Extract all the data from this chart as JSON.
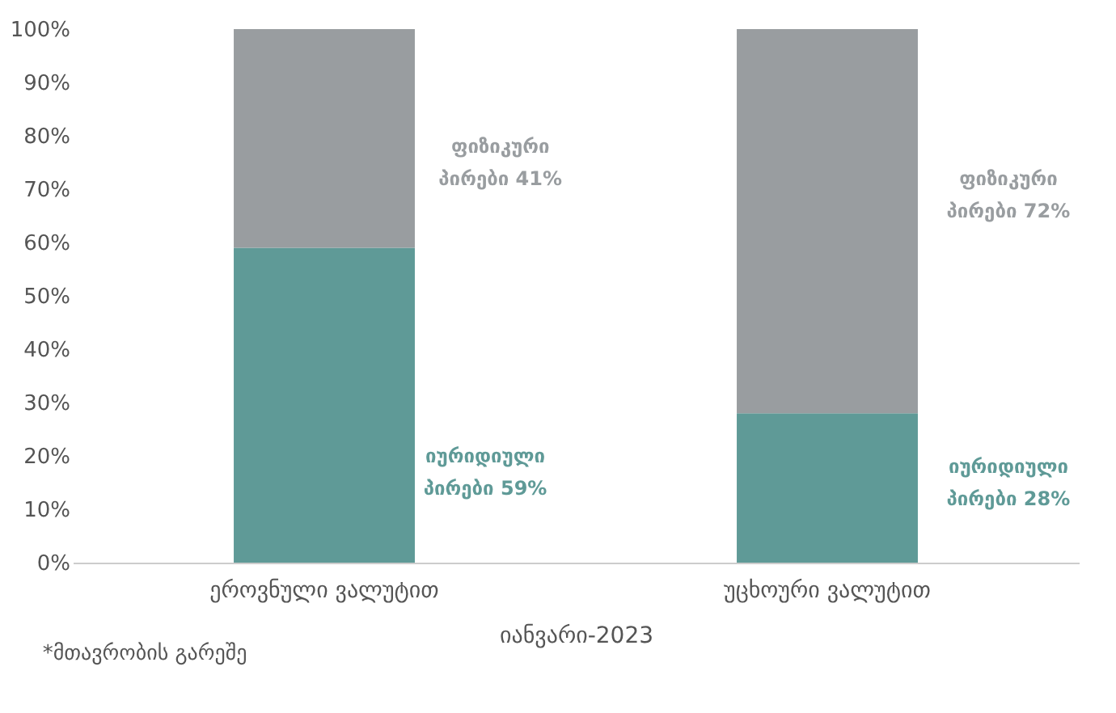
{
  "chart_data": {
    "type": "bar",
    "stacked": true,
    "xlabel": "იანვარი-2023",
    "categories": [
      "ეროვნული ვალუტით",
      "უცხოური ვალუტით"
    ],
    "series": [
      {
        "color": "#5f9a97",
        "values": [
          59,
          28
        ]
      },
      {
        "color": "#999da0",
        "values": [
          41,
          72
        ]
      }
    ],
    "ylim": [
      0,
      100
    ],
    "yticks": [
      {
        "value": 0,
        "label": "0%"
      },
      {
        "value": 10,
        "label": "10%"
      },
      {
        "value": 20,
        "label": "20%"
      },
      {
        "value": 30,
        "label": "30%"
      },
      {
        "value": 40,
        "label": "40%"
      },
      {
        "value": 50,
        "label": "50%"
      },
      {
        "value": 60,
        "label": "60%"
      },
      {
        "value": 70,
        "label": "70%"
      },
      {
        "value": 80,
        "label": "80%"
      },
      {
        "value": 90,
        "label": "90%"
      },
      {
        "value": 100,
        "label": "100%"
      }
    ],
    "grid": false,
    "annotations": [
      "ფიზიკური\nპირები 41%",
      "იურიდიული\nპირები 59%",
      "ფიზიკური\nპირები 72%",
      "იურიდიული\nპირები 28%",
      "*მთავრობის გარეშე"
    ]
  }
}
